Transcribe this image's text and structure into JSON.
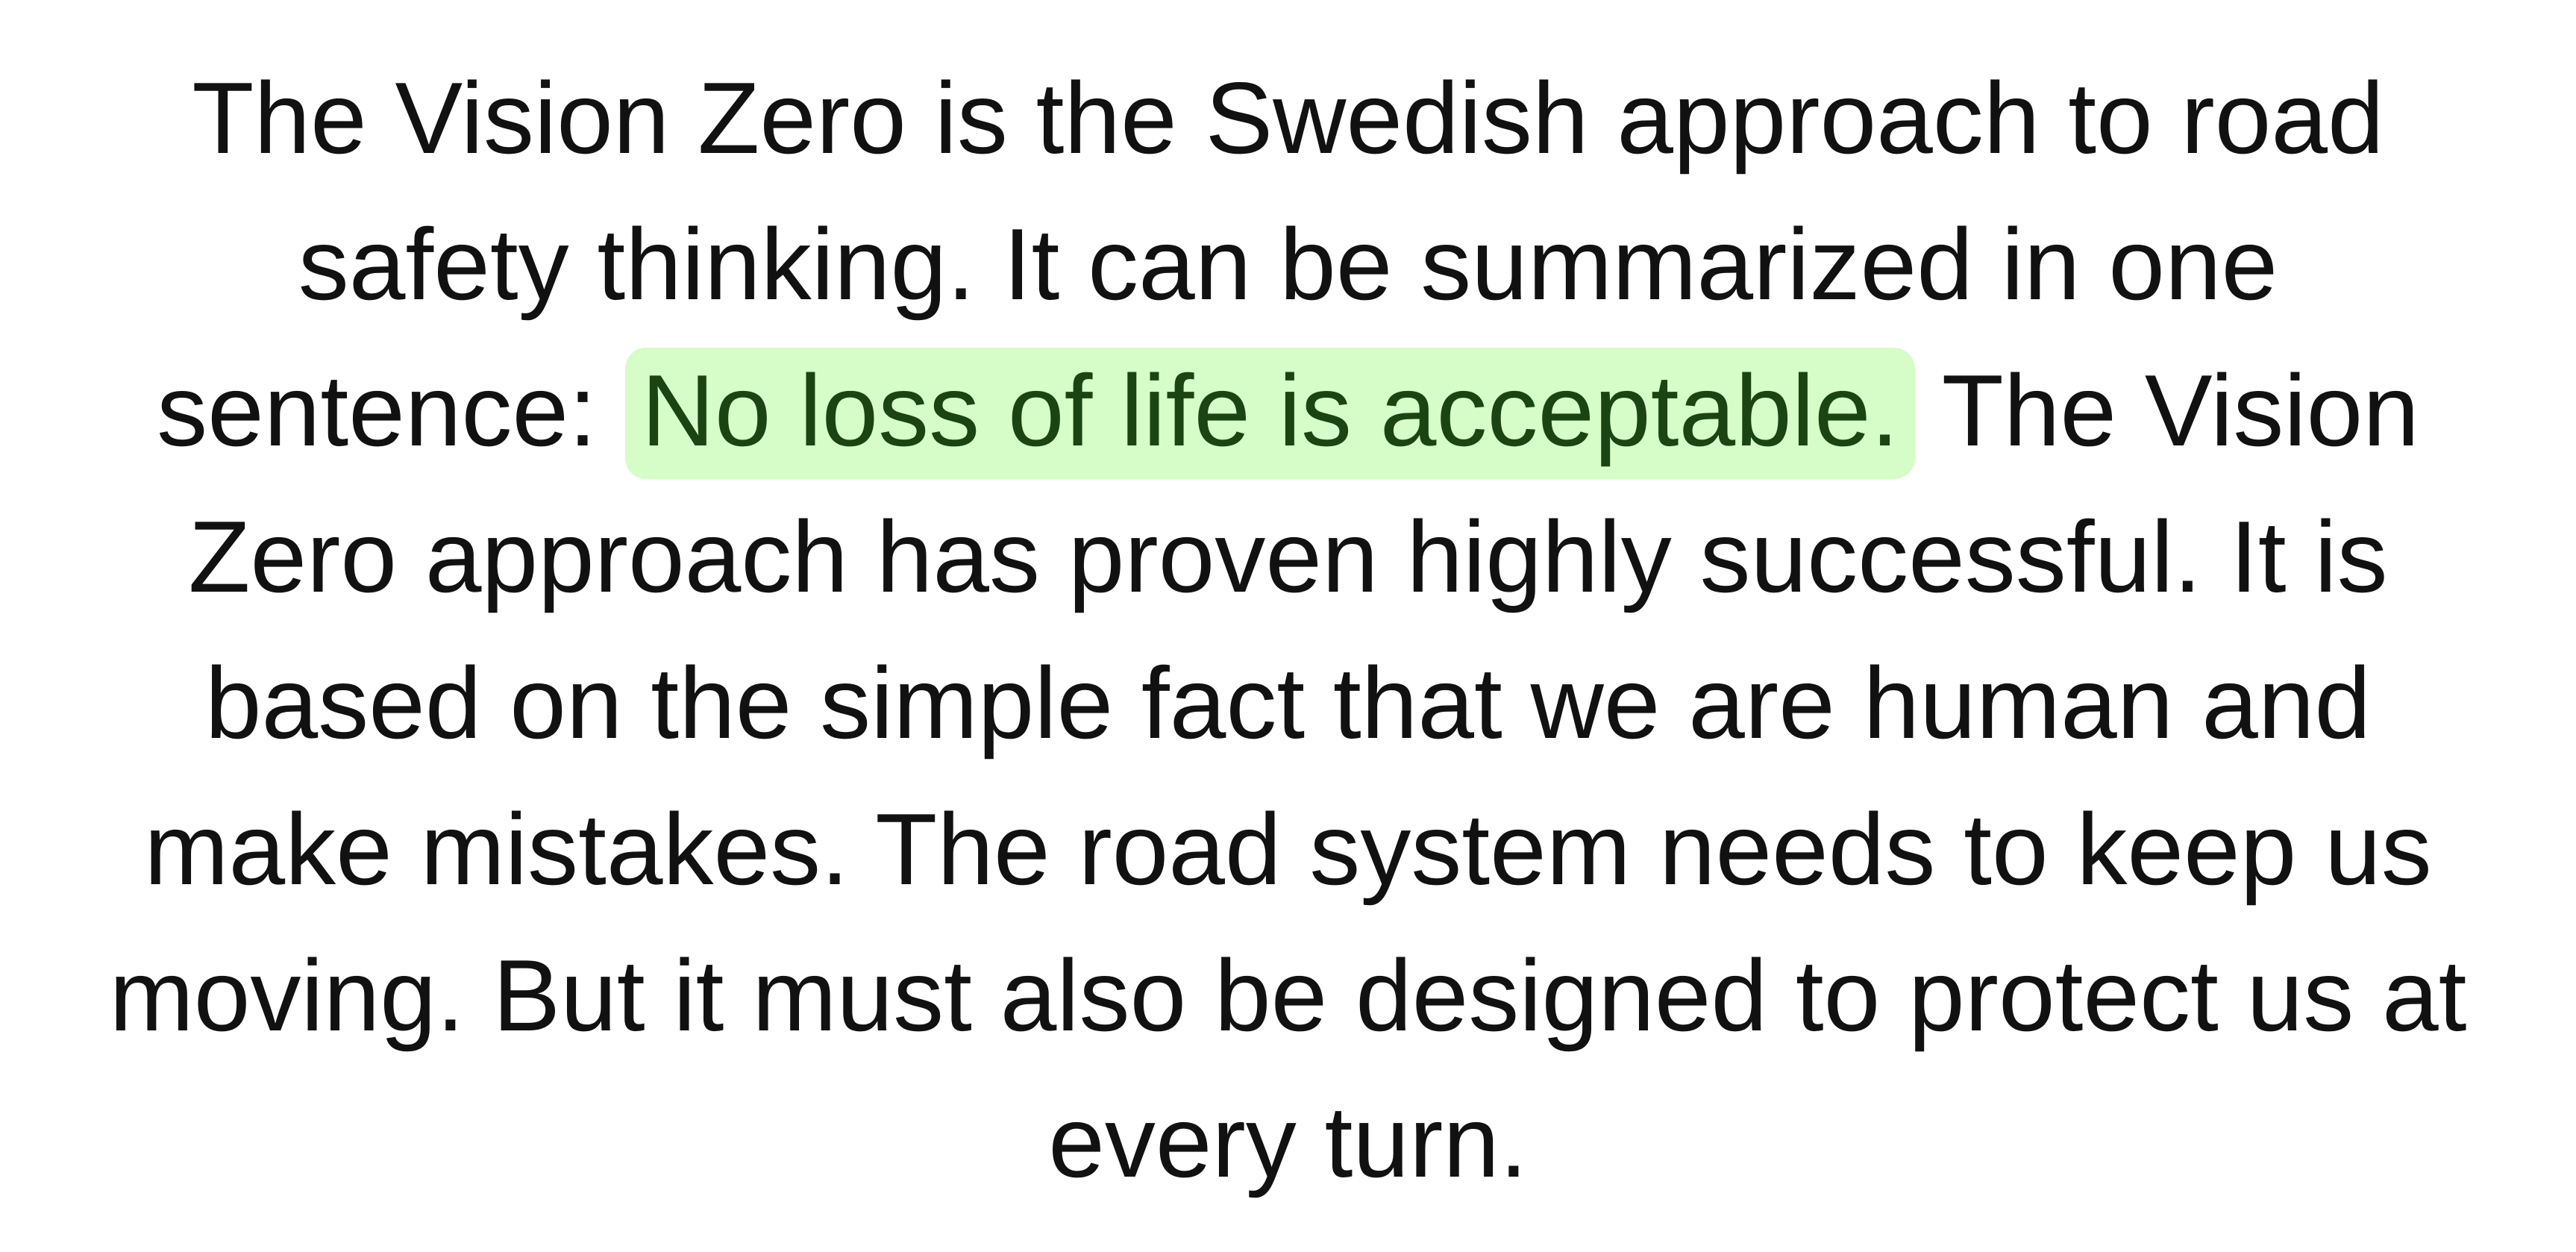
{
  "passage": {
    "before_highlight": "The Vision Zero is the Swedish approach to road safety thinking. It can be summarized in one sentence: ",
    "highlight": "No loss of life is acceptable.",
    "after_highlight": " The Vision Zero approach has proven highly successful. It is based on the simple fact that we are human and make mistakes. The road system needs to keep us moving. But it must also be designed to protect us at every turn."
  },
  "colors": {
    "text": "#111111",
    "highlight_background": "#d6fcc8",
    "highlight_text": "#1a4512",
    "page_background": "#ffffff"
  }
}
